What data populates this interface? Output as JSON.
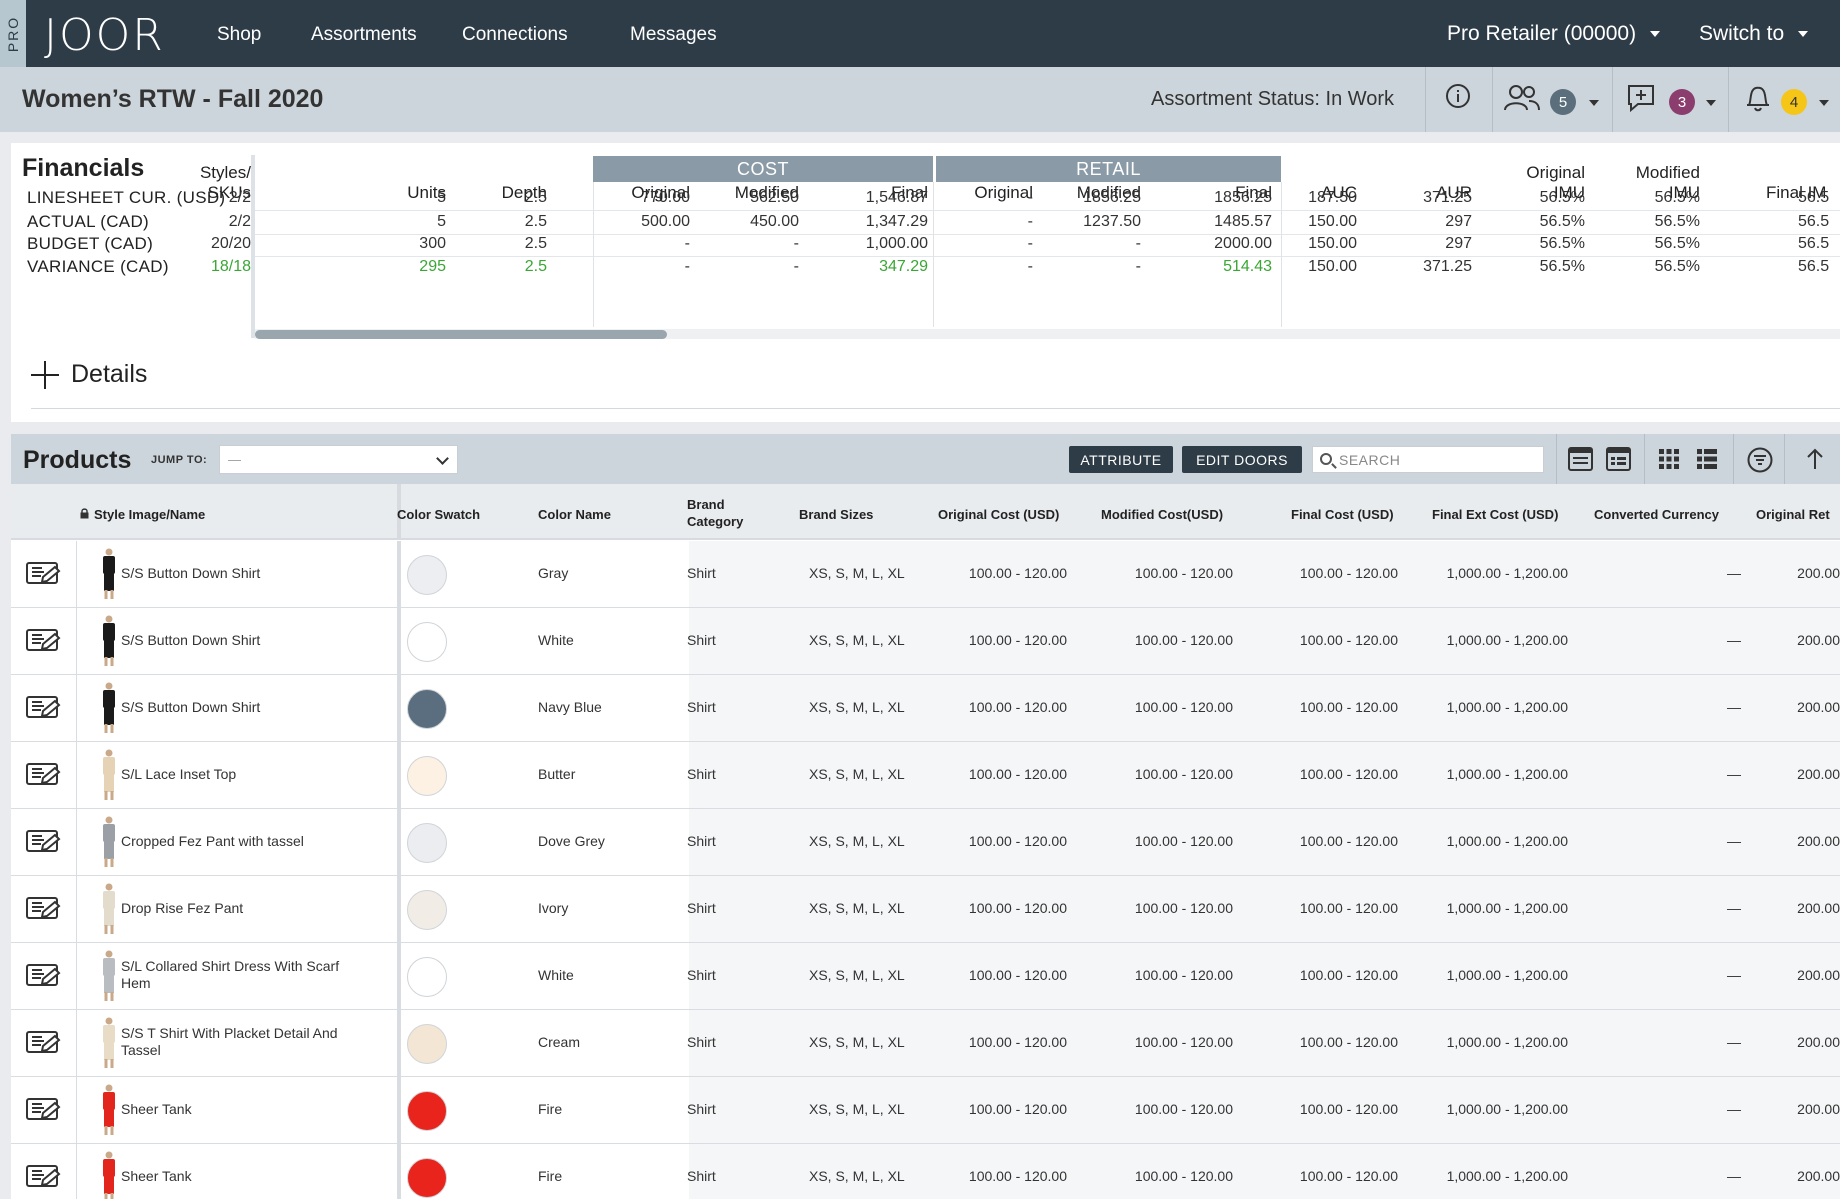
{
  "nav": {
    "pro_tag": "PRO",
    "logo": "JOOR",
    "items": [
      "Shop",
      "Assortments",
      "Connections",
      "Messages"
    ],
    "account": "Pro Retailer (00000)",
    "switch_to": "Switch to"
  },
  "subheader": {
    "title": "Women’s RTW - Fall 2020",
    "status": "Assortment Status: In Work",
    "users_count": "5",
    "messages_count": "3",
    "notifications_count": "4",
    "badge_colors": {
      "users": "#5b6e7c",
      "messages": "#8b3d6e",
      "notifications": "#f5c518"
    }
  },
  "financials": {
    "title": "Financials",
    "groups": {
      "cost": "COST",
      "retail": "RETAIL"
    },
    "headers": {
      "styles_line1": "Styles/",
      "styles_line2": "SKUs",
      "units": "Units",
      "depth": "Depth",
      "cost_original": "Original",
      "cost_modified": "Modified",
      "cost_final": "Final",
      "retail_original": "Original",
      "retail_modified": "Modified",
      "retail_final": "Final",
      "auc": "AUC",
      "aur": "AUR",
      "orig_imu_line1": "Original",
      "orig_imu_line2": "IMU",
      "mod_imu_line1": "Modified",
      "mod_imu_line2": "IMU",
      "final_imu": "Final IM"
    },
    "rows": [
      {
        "label": "LINESHEET CUR. (USD)",
        "styles": "2/2",
        "units": "5",
        "depth": "2.5",
        "cost_original": "770.00",
        "cost_modified": "562.50",
        "cost_final": "1,546.87",
        "retail_original": "-",
        "retail_modified": "1856.25",
        "retail_final": "1856.25",
        "auc": "187.50",
        "aur": "371.25",
        "orig_imu": "56.5%",
        "mod_imu": "56.5%",
        "final_imu": "56.5"
      },
      {
        "label": "ACTUAL (CAD)",
        "styles": "2/2",
        "units": "5",
        "depth": "2.5",
        "cost_original": "500.00",
        "cost_modified": "450.00",
        "cost_final": "1,347.29",
        "retail_original": "-",
        "retail_modified": "1237.50",
        "retail_final": "1485.57",
        "auc": "150.00",
        "aur": "297",
        "orig_imu": "56.5%",
        "mod_imu": "56.5%",
        "final_imu": "56.5"
      },
      {
        "label": "BUDGET (CAD)",
        "styles": "20/20",
        "units": "300",
        "depth": "2.5",
        "cost_original": "-",
        "cost_modified": "-",
        "cost_final": "1,000.00",
        "retail_original": "-",
        "retail_modified": "-",
        "retail_final": "2000.00",
        "auc": "150.00",
        "aur": "297",
        "orig_imu": "56.5%",
        "mod_imu": "56.5%",
        "final_imu": "56.5"
      },
      {
        "label": "VARIANCE (CAD)",
        "styles": "18/18",
        "units": "295",
        "depth": "2.5",
        "cost_original": "-",
        "cost_modified": "-",
        "cost_final": "347.29",
        "retail_original": "-",
        "retail_modified": "-",
        "retail_final": "514.43",
        "auc": "150.00",
        "aur": "371.25",
        "orig_imu": "56.5%",
        "mod_imu": "56.5%",
        "final_imu": "56.5"
      }
    ],
    "details_label": "Details",
    "accent_green": "#3aa635"
  },
  "products": {
    "title": "Products",
    "jump_to_label": "JUMP TO:",
    "jump_to_value": "—",
    "attribute_button": "ATTRIBUTE",
    "edit_doors_button": "EDIT DOORS",
    "search_placeholder": "SEARCH",
    "columns": {
      "style_image_name": "Style Image/Name",
      "color_swatch": "Color Swatch",
      "color_name": "Color Name",
      "brand_category_line1": "Brand",
      "brand_category_line2": "Category",
      "brand_sizes": "Brand Sizes",
      "original_cost": "Original Cost (USD)",
      "modified_cost": "Modified Cost(USD)",
      "final_cost": "Final Cost (USD)",
      "final_ext_cost": "Final Ext Cost (USD)",
      "converted_currency": "Converted Currency",
      "original_retail": "Original Ret"
    },
    "rows": [
      {
        "name_line1": "S/S Button Down Shirt",
        "name_line2": "",
        "swatch": "#eceef1",
        "color": "Gray",
        "category": "Shirt",
        "sizes": "XS, S, M, L, XL",
        "orig_cost": "100.00 - 120.00",
        "mod_cost": "100.00 - 120.00",
        "final_cost": "100.00 - 120.00",
        "ext_cost": "1,000.00 - 1,200.00",
        "currency": "—",
        "orig_retail": "200.00",
        "garment": "#1a1a1a"
      },
      {
        "name_line1": "S/S Button Down Shirt",
        "name_line2": "",
        "swatch": "#ffffff",
        "color": "White",
        "category": "Shirt",
        "sizes": "XS, S, M, L, XL",
        "orig_cost": "100.00 - 120.00",
        "mod_cost": "100.00 - 120.00",
        "final_cost": "100.00 - 120.00",
        "ext_cost": "1,000.00 - 1,200.00",
        "currency": "—",
        "orig_retail": "200.00",
        "garment": "#1a1a1a"
      },
      {
        "name_line1": "S/S Button Down Shirt",
        "name_line2": "",
        "swatch": "#5b6e7f",
        "color": "Navy Blue",
        "category": "Shirt",
        "sizes": "XS, S, M, L, XL",
        "orig_cost": "100.00 - 120.00",
        "mod_cost": "100.00 - 120.00",
        "final_cost": "100.00 - 120.00",
        "ext_cost": "1,000.00 - 1,200.00",
        "currency": "—",
        "orig_retail": "200.00",
        "garment": "#1a1a1a"
      },
      {
        "name_line1": "S/L Lace Inset Top",
        "name_line2": "",
        "swatch": "#fdf1e3",
        "color": "Butter",
        "category": "Shirt",
        "sizes": "XS, S, M, L, XL",
        "orig_cost": "100.00 - 120.00",
        "mod_cost": "100.00 - 120.00",
        "final_cost": "100.00 - 120.00",
        "ext_cost": "1,000.00 - 1,200.00",
        "currency": "—",
        "orig_retail": "200.00",
        "garment": "#e6d3b6"
      },
      {
        "name_line1": "Cropped Fez Pant with tassel",
        "name_line2": "",
        "swatch": "#ebedf0",
        "color": "Dove Grey",
        "category": "Shirt",
        "sizes": "XS, S, M, L, XL",
        "orig_cost": "100.00 - 120.00",
        "mod_cost": "100.00 - 120.00",
        "final_cost": "100.00 - 120.00",
        "ext_cost": "1,000.00 - 1,200.00",
        "currency": "—",
        "orig_retail": "200.00",
        "garment": "#9aa0a6"
      },
      {
        "name_line1": "Drop Rise Fez Pant",
        "name_line2": "",
        "swatch": "#f1ede6",
        "color": "Ivory",
        "category": "Shirt",
        "sizes": "XS, S, M, L, XL",
        "orig_cost": "100.00 - 120.00",
        "mod_cost": "100.00 - 120.00",
        "final_cost": "100.00 - 120.00",
        "ext_cost": "1,000.00 - 1,200.00",
        "currency": "—",
        "orig_retail": "200.00",
        "garment": "#e3dccd"
      },
      {
        "name_line1": "S/L Collared Shirt Dress With Scarf",
        "name_line2": "Hem",
        "swatch": "#ffffff",
        "color": "White",
        "category": "Shirt",
        "sizes": "XS, S, M, L, XL",
        "orig_cost": "100.00 - 120.00",
        "mod_cost": "100.00 - 120.00",
        "final_cost": "100.00 - 120.00",
        "ext_cost": "1,000.00 - 1,200.00",
        "currency": "—",
        "orig_retail": "200.00",
        "garment": "#b9bcc0"
      },
      {
        "name_line1": "S/S T Shirt With Placket Detail And",
        "name_line2": "Tassel",
        "swatch": "#f3e6d4",
        "color": "Cream",
        "category": "Shirt",
        "sizes": "XS, S, M, L, XL",
        "orig_cost": "100.00 - 120.00",
        "mod_cost": "100.00 - 120.00",
        "final_cost": "100.00 - 120.00",
        "ext_cost": "1,000.00 - 1,200.00",
        "currency": "—",
        "orig_retail": "200.00",
        "garment": "#e8dcc7"
      },
      {
        "name_line1": "Sheer Tank",
        "name_line2": "",
        "swatch": "#e8241c",
        "color": "Fire",
        "category": "Shirt",
        "sizes": "XS, S, M, L, XL",
        "orig_cost": "100.00 - 120.00",
        "mod_cost": "100.00 - 120.00",
        "final_cost": "100.00 - 120.00",
        "ext_cost": "1,000.00 - 1,200.00",
        "currency": "—",
        "orig_retail": "200.00",
        "garment": "#e3261d"
      },
      {
        "name_line1": "Sheer Tank",
        "name_line2": "",
        "swatch": "#e8241c",
        "color": "Fire",
        "category": "Shirt",
        "sizes": "XS, S, M, L, XL",
        "orig_cost": "100.00 - 120.00",
        "mod_cost": "100.00 - 120.00",
        "final_cost": "100.00 - 120.00",
        "ext_cost": "1,000.00 - 1,200.00",
        "currency": "—",
        "orig_retail": "200.00",
        "garment": "#e3261d"
      }
    ]
  }
}
